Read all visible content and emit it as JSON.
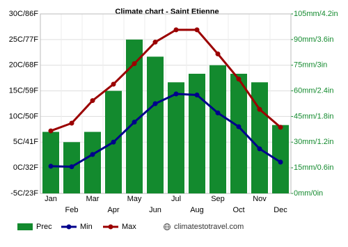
{
  "chart_data": {
    "type": "combo",
    "title": "Climate chart - Saint Etienne",
    "categories": [
      "Jan",
      "Feb",
      "Mar",
      "Apr",
      "May",
      "Jun",
      "Jul",
      "Aug",
      "Sep",
      "Oct",
      "Nov",
      "Dec"
    ],
    "series": [
      {
        "name": "Prec",
        "type": "bar",
        "axis": "y2",
        "color": "#138a2e",
        "values": [
          36,
          30,
          36,
          60,
          90,
          80,
          65,
          70,
          75,
          70,
          65,
          40
        ]
      },
      {
        "name": "Min",
        "type": "line",
        "color": "#00008b",
        "values": [
          0.3,
          0.2,
          2.6,
          5.0,
          8.9,
          12.5,
          14.4,
          14.2,
          10.7,
          8.0,
          3.7,
          1.1
        ]
      },
      {
        "name": "Max",
        "type": "line",
        "color": "#9b0000",
        "values": [
          7.2,
          8.7,
          13.1,
          16.3,
          20.3,
          24.5,
          26.9,
          26.9,
          22.2,
          17.3,
          11.4,
          7.9
        ]
      }
    ],
    "ylim": [
      -5,
      30
    ],
    "yticks": [
      {
        "value": -5,
        "label": "-5C/23F"
      },
      {
        "value": 0,
        "label": "0C/32F"
      },
      {
        "value": 5,
        "label": "5C/41F"
      },
      {
        "value": 10,
        "label": "10C/50F"
      },
      {
        "value": 15,
        "label": "15C/59F"
      },
      {
        "value": 20,
        "label": "20C/68F"
      },
      {
        "value": 25,
        "label": "25C/77F"
      },
      {
        "value": 30,
        "label": "30C/86F"
      }
    ],
    "y2lim": [
      0,
      105
    ],
    "y2ticks": [
      {
        "value": 0,
        "label": "0mm/0in"
      },
      {
        "value": 15,
        "label": "15mm/0.6in"
      },
      {
        "value": 30,
        "label": "30mm/1.2in"
      },
      {
        "value": 45,
        "label": "45mm/1.8in"
      },
      {
        "value": 60,
        "label": "60mm/2.4in"
      },
      {
        "value": 75,
        "label": "75mm/3in"
      },
      {
        "value": 90,
        "label": "90mm/3.6in"
      },
      {
        "value": 105,
        "label": "105mm/4.2in"
      }
    ],
    "grid": true,
    "source": "climatestotravel.com"
  }
}
